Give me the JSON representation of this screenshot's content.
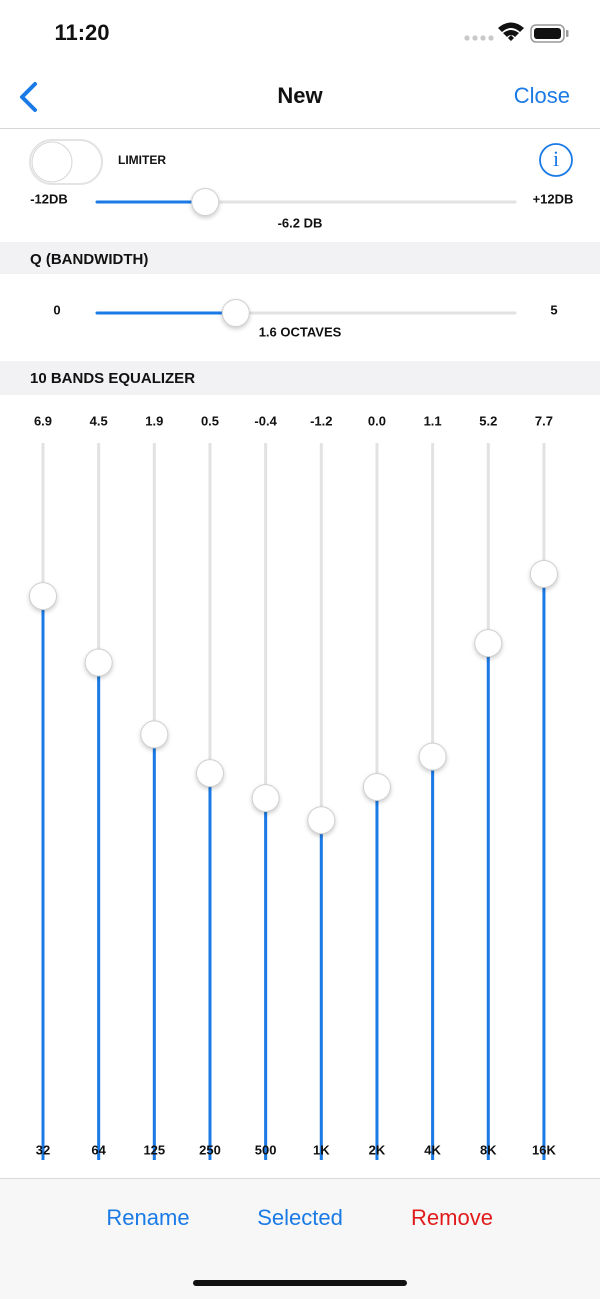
{
  "status_bar": {
    "time": "11:20"
  },
  "nav": {
    "title": "New",
    "close": "Close"
  },
  "gain": {
    "limiter": "LIMITER",
    "min_label": "-12DB",
    "max_label": "+12DB",
    "value_label": "-6.2 DB"
  },
  "q": {
    "header": "Q (BANDWIDTH)",
    "min_label": "0",
    "max_label": "5",
    "value_label": "1.6 OCTAVES"
  },
  "equalizer": {
    "header": "10 BANDS EQUALIZER",
    "bands": [
      {
        "value": "6.9",
        "frequency": "32"
      },
      {
        "value": "4.5",
        "frequency": "64"
      },
      {
        "value": "1.9",
        "frequency": "125"
      },
      {
        "value": "0.5",
        "frequency": "250"
      },
      {
        "value": "-0.4",
        "frequency": "500"
      },
      {
        "value": "-1.2",
        "frequency": "1K"
      },
      {
        "value": "0.0",
        "frequency": "2K"
      },
      {
        "value": "1.1",
        "frequency": "4K"
      },
      {
        "value": "5.2",
        "frequency": "8K"
      },
      {
        "value": "7.7",
        "frequency": "16K"
      }
    ]
  },
  "toolbar": {
    "rename": "Rename",
    "selected": "Selected",
    "remove": "Remove"
  }
}
